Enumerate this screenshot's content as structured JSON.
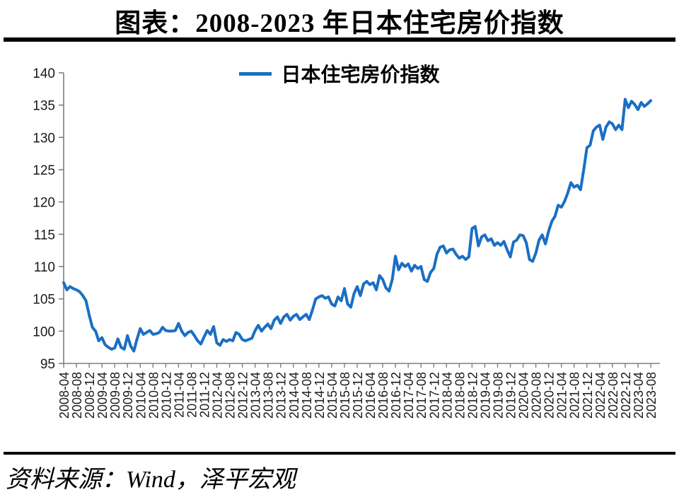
{
  "page": {
    "title": "图表：2008-2023 年日本住宅房价指数",
    "source": "资料来源：Wind，泽平宏观"
  },
  "legend": {
    "label": "日本住宅房价指数"
  },
  "colors": {
    "line": "#1A6FC4",
    "axis": "#7F7F7F",
    "tick_text": "#1A1A1A",
    "rule": "#000000"
  },
  "chart_data": {
    "type": "line",
    "title": "图表：2008-2023 年日本住宅房价指数",
    "grid": false,
    "legend_position": "top-center",
    "ylim": [
      95,
      140
    ],
    "y_ticks": [
      95,
      100,
      105,
      110,
      115,
      120,
      125,
      130,
      135,
      140
    ],
    "x_tick_labels": [
      "2008-04",
      "2008-08",
      "2008-12",
      "2009-04",
      "2009-08",
      "2009-12",
      "2010-04",
      "2010-08",
      "2010-12",
      "2011-04",
      "2011-08",
      "2011-12",
      "2012-04",
      "2012-08",
      "2012-12",
      "2013-04",
      "2013-08",
      "2013-12",
      "2014-04",
      "2014-08",
      "2014-12",
      "2015-04",
      "2015-08",
      "2015-12",
      "2016-04",
      "2016-08",
      "2016-12",
      "2017-04",
      "2017-08",
      "2017-12",
      "2018-04",
      "2018-08",
      "2018-12",
      "2019-04",
      "2019-08",
      "2019-12",
      "2020-04",
      "2020-08",
      "2020-12",
      "2021-04",
      "2021-08",
      "2021-12",
      "2022-04",
      "2022-08",
      "2022-12",
      "2023-04",
      "2023-08"
    ],
    "x_label_interval_months": 4,
    "series": [
      {
        "name": "日本住宅房价指数",
        "start": "2008-04",
        "frequency": "monthly",
        "values": [
          107.5,
          106.4,
          106.9,
          106.6,
          106.4,
          106.1,
          105.5,
          104.7,
          102.5,
          100.6,
          100.0,
          98.5,
          99.0,
          97.9,
          97.5,
          97.2,
          97.4,
          98.8,
          97.5,
          97.2,
          99.3,
          97.7,
          96.9,
          98.8,
          100.4,
          99.5,
          99.8,
          100.1,
          99.5,
          99.6,
          99.8,
          100.6,
          100.1,
          100.0,
          100.0,
          100.1,
          101.2,
          100.0,
          99.3,
          99.8,
          100.0,
          99.3,
          98.5,
          98.0,
          99.1,
          100.1,
          99.5,
          100.7,
          98.2,
          97.8,
          98.7,
          98.4,
          98.7,
          98.5,
          99.8,
          99.5,
          98.7,
          98.5,
          98.7,
          98.9,
          100.1,
          100.9,
          100.0,
          100.6,
          101.1,
          100.4,
          101.7,
          102.2,
          101.2,
          102.2,
          102.6,
          101.7,
          102.3,
          102.6,
          101.8,
          102.2,
          102.6,
          101.8,
          103.3,
          105.0,
          105.3,
          105.5,
          105.1,
          105.3,
          104.2,
          103.9,
          105.3,
          104.7,
          106.6,
          104.2,
          103.7,
          105.8,
          106.9,
          105.5,
          107.3,
          107.7,
          107.2,
          107.5,
          106.4,
          108.6,
          108.0,
          106.7,
          106.2,
          108.0,
          111.6,
          109.5,
          110.5,
          110.0,
          110.4,
          109.3,
          110.2,
          109.7,
          110.0,
          108.0,
          107.7,
          109.1,
          109.7,
          111.9,
          113.0,
          113.2,
          112.1,
          112.6,
          112.7,
          111.9,
          111.3,
          111.6,
          111.1,
          111.5,
          115.9,
          116.2,
          113.2,
          114.6,
          114.9,
          114.0,
          114.3,
          113.3,
          113.7,
          113.3,
          113.9,
          112.6,
          111.5,
          113.8,
          114.1,
          114.9,
          114.8,
          113.7,
          111.1,
          110.8,
          112.1,
          114.1,
          114.9,
          113.5,
          115.5,
          117.0,
          117.8,
          119.5,
          119.2,
          120.1,
          121.4,
          123.0,
          122.3,
          122.6,
          121.9,
          125.0,
          128.4,
          128.8,
          131.0,
          131.6,
          131.9,
          129.7,
          131.6,
          132.4,
          132.1,
          131.2,
          131.9,
          131.2,
          135.9,
          134.6,
          135.6,
          135.1,
          134.3,
          135.4,
          134.8,
          135.2,
          135.7
        ]
      }
    ]
  }
}
